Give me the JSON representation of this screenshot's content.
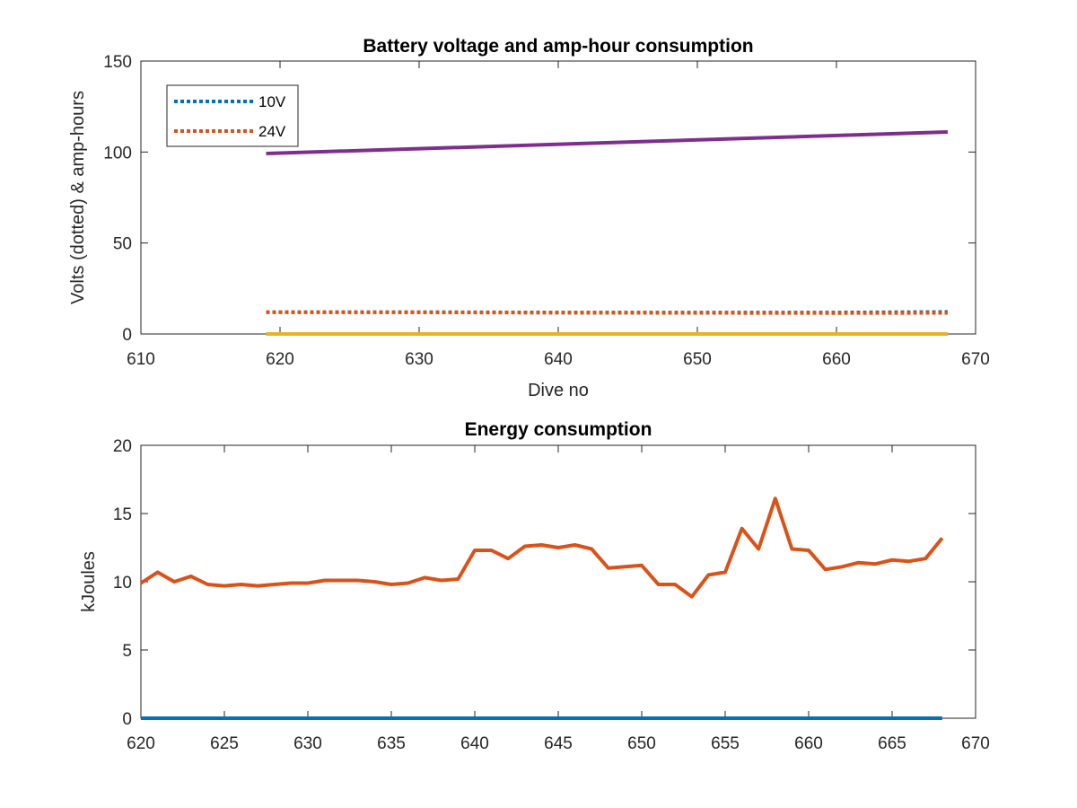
{
  "chart_data": [
    {
      "type": "line",
      "title": "Battery voltage and amp-hour consumption",
      "xlabel": "Dive no",
      "ylabel": "Volts (dotted) & amp-hours",
      "xlim": [
        610,
        670
      ],
      "ylim": [
        0,
        150
      ],
      "xticks": [
        "610",
        "620",
        "630",
        "640",
        "650",
        "660",
        "670"
      ],
      "yticks": [
        "0",
        "50",
        "100",
        "150"
      ],
      "grid": false,
      "legend_position": "top-left",
      "series": [
        {
          "name": "10V",
          "style": "dotted",
          "color": "#0072BD",
          "x": [
            619,
            630,
            640,
            650,
            660,
            668
          ],
          "y": [
            12.0,
            12.0,
            11.8,
            11.8,
            11.8,
            12.1
          ]
        },
        {
          "name": "24V",
          "style": "dotted",
          "color": "#D95319",
          "x": [
            619,
            630,
            640,
            650,
            660,
            668
          ],
          "y": [
            12.0,
            11.9,
            11.7,
            11.6,
            11.5,
            11.6
          ]
        },
        {
          "name": "",
          "style": "solid",
          "color": "#7E2F8E",
          "x": [
            619,
            668
          ],
          "y": [
            99.2,
            111.0
          ]
        },
        {
          "name": "",
          "style": "solid",
          "color": "#EDB120",
          "x": [
            619,
            668
          ],
          "y": [
            0,
            0
          ]
        }
      ]
    },
    {
      "type": "line",
      "title": "Energy consumption",
      "xlabel": "",
      "ylabel": "kJoules",
      "xlim": [
        620,
        670
      ],
      "ylim": [
        0,
        20
      ],
      "xticks": [
        "620",
        "625",
        "630",
        "635",
        "640",
        "645",
        "650",
        "655",
        "660",
        "665",
        "670"
      ],
      "yticks": [
        "0",
        "5",
        "10",
        "15",
        "20"
      ],
      "grid": false,
      "series": [
        {
          "name": "",
          "style": "solid",
          "color": "#D95319",
          "x": [
            620,
            621,
            622,
            623,
            624,
            625,
            626,
            627,
            628,
            629,
            630,
            631,
            632,
            633,
            634,
            635,
            636,
            637,
            638,
            639,
            640,
            641,
            642,
            643,
            644,
            645,
            646,
            647,
            648,
            649,
            650,
            651,
            652,
            653,
            654,
            655,
            656,
            657,
            658,
            659,
            660,
            661,
            662,
            663,
            664,
            665,
            666,
            667,
            668
          ],
          "y": [
            9.9,
            10.7,
            10.0,
            10.4,
            9.8,
            9.7,
            9.8,
            9.7,
            9.8,
            9.9,
            9.9,
            10.1,
            10.1,
            10.1,
            10.0,
            9.8,
            9.9,
            10.3,
            10.1,
            10.2,
            12.3,
            12.3,
            11.7,
            12.6,
            12.7,
            12.5,
            12.7,
            12.4,
            11.0,
            11.1,
            11.2,
            9.8,
            9.8,
            8.9,
            10.5,
            10.7,
            13.9,
            12.4,
            16.1,
            12.4,
            12.3,
            10.9,
            11.1,
            11.4,
            11.3,
            11.6,
            11.5,
            11.7,
            13.2
          ]
        },
        {
          "name": "",
          "style": "solid",
          "color": "#0072BD",
          "x": [
            620,
            668
          ],
          "y": [
            0,
            0
          ]
        }
      ]
    }
  ]
}
